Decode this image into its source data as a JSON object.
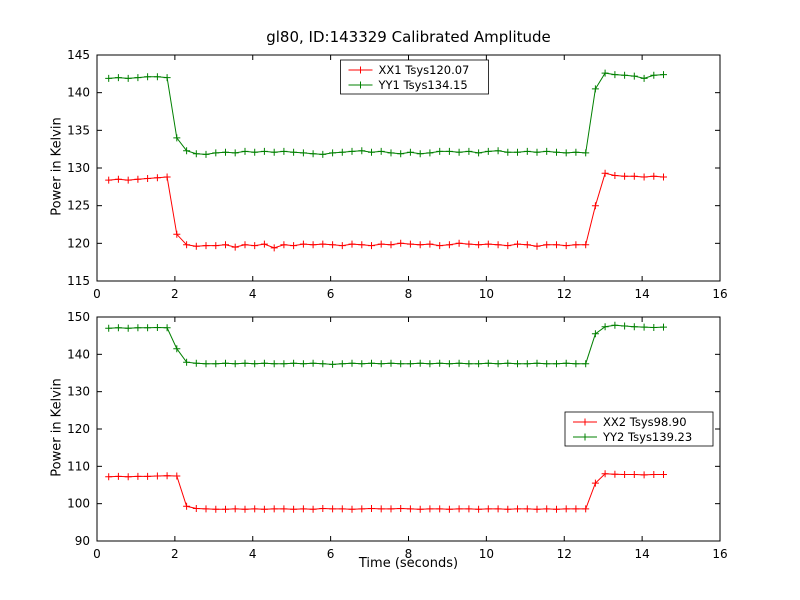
{
  "title": "gl80, ID:143329 Calibrated Amplitude",
  "chart_data": [
    {
      "type": "line",
      "ylabel": "Power in Kelvin",
      "xlim": [
        0,
        16
      ],
      "ylim": [
        115,
        145
      ],
      "xticks": [
        0,
        2,
        4,
        6,
        8,
        10,
        12,
        14,
        16
      ],
      "yticks": [
        115,
        120,
        125,
        130,
        135,
        140,
        145
      ],
      "grid": false,
      "legend_loc": "upper center",
      "marker": "plus",
      "x": [
        0.3,
        0.55,
        0.8,
        1.05,
        1.3,
        1.55,
        1.8,
        2.05,
        2.3,
        2.55,
        2.8,
        3.05,
        3.3,
        3.55,
        3.8,
        4.05,
        4.3,
        4.55,
        4.8,
        5.05,
        5.3,
        5.55,
        5.8,
        6.05,
        6.3,
        6.55,
        6.8,
        7.05,
        7.3,
        7.55,
        7.8,
        8.05,
        8.3,
        8.55,
        8.8,
        9.05,
        9.3,
        9.55,
        9.8,
        10.05,
        10.3,
        10.55,
        10.8,
        11.05,
        11.3,
        11.55,
        11.8,
        12.05,
        12.3,
        12.55,
        12.8,
        13.05,
        13.3,
        13.55,
        13.8,
        14.05,
        14.3,
        14.55
      ],
      "series": [
        {
          "name": "XX1 Tsys120.07",
          "color": "#ff0000",
          "values": [
            128.4,
            128.5,
            128.4,
            128.5,
            128.6,
            128.7,
            128.8,
            121.2,
            119.8,
            119.6,
            119.7,
            119.7,
            119.8,
            119.5,
            119.8,
            119.7,
            119.9,
            119.4,
            119.8,
            119.7,
            119.9,
            119.8,
            119.9,
            119.8,
            119.7,
            119.9,
            119.8,
            119.7,
            119.9,
            119.8,
            120.0,
            119.9,
            119.8,
            119.9,
            119.7,
            119.8,
            120.0,
            119.9,
            119.8,
            119.9,
            119.8,
            119.7,
            119.9,
            119.8,
            119.6,
            119.8,
            119.8,
            119.7,
            119.8,
            119.8,
            125.0,
            129.3,
            129.0,
            128.9,
            128.9,
            128.8,
            128.9,
            128.8
          ]
        },
        {
          "name": "YY1 Tsys134.15",
          "color": "#008000",
          "values": [
            141.9,
            142.0,
            141.9,
            142.0,
            142.1,
            142.1,
            142.0,
            134.0,
            132.3,
            131.9,
            131.8,
            132.0,
            132.1,
            132.0,
            132.2,
            132.1,
            132.2,
            132.1,
            132.2,
            132.1,
            132.0,
            131.9,
            131.8,
            132.0,
            132.1,
            132.2,
            132.3,
            132.1,
            132.2,
            132.0,
            131.9,
            132.1,
            131.9,
            132.0,
            132.2,
            132.2,
            132.1,
            132.2,
            132.0,
            132.2,
            132.3,
            132.1,
            132.1,
            132.2,
            132.1,
            132.2,
            132.1,
            132.0,
            132.1,
            132.0,
            140.5,
            142.6,
            142.4,
            142.3,
            142.2,
            141.9,
            142.3,
            142.4
          ]
        }
      ]
    },
    {
      "type": "line",
      "ylabel": "Power in Kelvin",
      "xlabel": "Time (seconds)",
      "xlim": [
        0,
        16
      ],
      "ylim": [
        90,
        150
      ],
      "xticks": [
        0,
        2,
        4,
        6,
        8,
        10,
        12,
        14,
        16
      ],
      "yticks": [
        90,
        100,
        110,
        120,
        130,
        140,
        150
      ],
      "grid": false,
      "legend_loc": "center right",
      "marker": "plus",
      "x": [
        0.3,
        0.55,
        0.8,
        1.05,
        1.3,
        1.55,
        1.8,
        2.05,
        2.3,
        2.55,
        2.8,
        3.05,
        3.3,
        3.55,
        3.8,
        4.05,
        4.3,
        4.55,
        4.8,
        5.05,
        5.3,
        5.55,
        5.8,
        6.05,
        6.3,
        6.55,
        6.8,
        7.05,
        7.3,
        7.55,
        7.8,
        8.05,
        8.3,
        8.55,
        8.8,
        9.05,
        9.3,
        9.55,
        9.8,
        10.05,
        10.3,
        10.55,
        10.8,
        11.05,
        11.3,
        11.55,
        11.8,
        12.05,
        12.3,
        12.55,
        12.8,
        13.05,
        13.3,
        13.55,
        13.8,
        14.05,
        14.3,
        14.55
      ],
      "series": [
        {
          "name": "XX2 Tsys98.90",
          "color": "#ff0000",
          "values": [
            107.2,
            107.3,
            107.2,
            107.3,
            107.3,
            107.4,
            107.5,
            107.4,
            99.3,
            98.7,
            98.6,
            98.5,
            98.5,
            98.6,
            98.5,
            98.6,
            98.5,
            98.6,
            98.6,
            98.5,
            98.6,
            98.5,
            98.7,
            98.6,
            98.6,
            98.5,
            98.6,
            98.7,
            98.6,
            98.6,
            98.7,
            98.6,
            98.5,
            98.6,
            98.6,
            98.5,
            98.6,
            98.6,
            98.5,
            98.6,
            98.6,
            98.5,
            98.6,
            98.6,
            98.5,
            98.6,
            98.5,
            98.6,
            98.6,
            98.6,
            105.5,
            108.0,
            107.9,
            107.8,
            107.8,
            107.7,
            107.8,
            107.8
          ]
        },
        {
          "name": "YY2 Tsys139.23",
          "color": "#008000",
          "values": [
            147.0,
            147.1,
            147.0,
            147.1,
            147.1,
            147.2,
            147.1,
            141.5,
            137.9,
            137.6,
            137.5,
            137.5,
            137.6,
            137.5,
            137.6,
            137.5,
            137.6,
            137.5,
            137.5,
            137.6,
            137.5,
            137.6,
            137.5,
            137.3,
            137.5,
            137.6,
            137.5,
            137.6,
            137.5,
            137.6,
            137.5,
            137.5,
            137.6,
            137.5,
            137.6,
            137.5,
            137.6,
            137.5,
            137.5,
            137.6,
            137.5,
            137.6,
            137.5,
            137.5,
            137.6,
            137.5,
            137.5,
            137.6,
            137.5,
            137.5,
            145.5,
            147.4,
            147.8,
            147.6,
            147.4,
            147.3,
            147.2,
            147.3
          ]
        }
      ]
    }
  ]
}
